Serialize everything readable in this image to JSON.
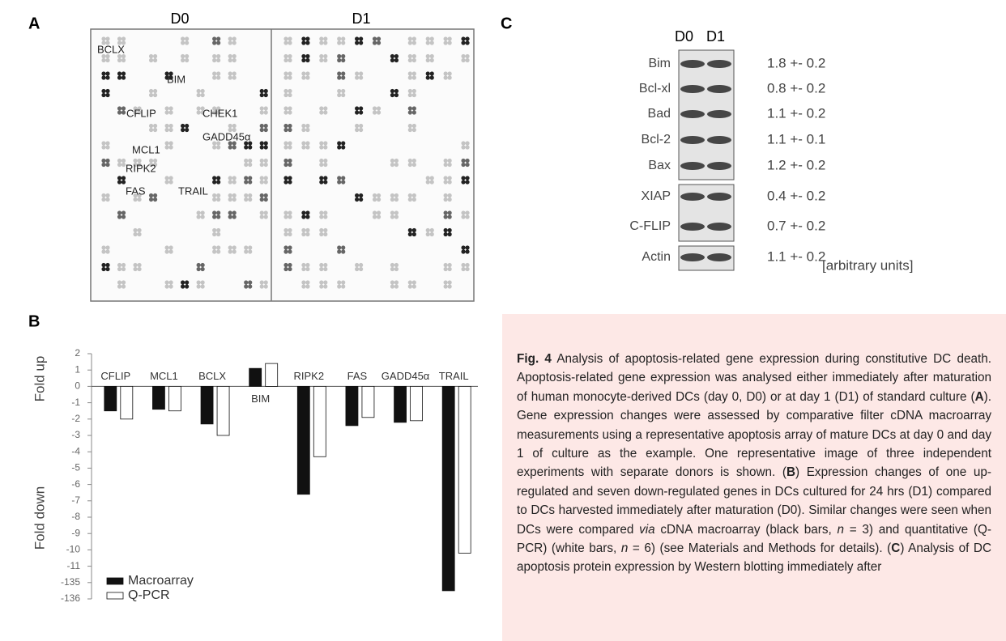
{
  "panel_a": {
    "letter": "A",
    "days": [
      "D0",
      "D1"
    ],
    "genes": [
      "BCLX",
      "BIM",
      "CFLIP",
      "CHEK1",
      "GADD45α",
      "MCL1",
      "RIPK2",
      "FAS",
      "TRAIL"
    ]
  },
  "chart_data": {
    "type": "bar",
    "letter": "B",
    "axis_labels": [
      "Fold up",
      "Fold down"
    ],
    "categories": [
      "CFLIP",
      "MCL1",
      "BCLX",
      "BIM",
      "RIPK2",
      "FAS",
      "GADD45α",
      "TRAIL"
    ],
    "series": [
      {
        "name": "Macroarray",
        "color": "#111111",
        "values": [
          -1.5,
          -1.4,
          -2.3,
          1.1,
          -6.6,
          -2.4,
          -2.2,
          -135.5
        ]
      },
      {
        "name": "Q-PCR",
        "color": "#ffffff",
        "values": [
          -2.0,
          -1.5,
          -3.0,
          1.4,
          -4.3,
          -1.9,
          -2.1,
          -10.2
        ]
      }
    ],
    "ylim": [
      -136,
      2
    ],
    "yticks": [
      2,
      1,
      0,
      -1,
      -2,
      -3,
      -4,
      -5,
      -6,
      -7,
      -8,
      -9,
      -10,
      -11,
      -135,
      -136
    ],
    "axis_break": [
      -11,
      -135
    ],
    "legend": "bottom-left"
  },
  "panel_c": {
    "letter": "C",
    "lanes": [
      "D0",
      "D1"
    ],
    "rows": [
      {
        "protein": "Bim",
        "ratio": "1.8 +- 0.2"
      },
      {
        "protein": "Bcl-xl",
        "ratio": "0.8 +- 0.2"
      },
      {
        "protein": "Bad",
        "ratio": "1.1 +- 0.2"
      },
      {
        "protein": "Bcl-2",
        "ratio": "1.1 +- 0.1"
      },
      {
        "protein": "Bax",
        "ratio": "1.2 +- 0.2"
      },
      {
        "protein": "XIAP",
        "ratio": "0.4 +- 0.2"
      },
      {
        "protein": "C-FLIP",
        "ratio": "0.7 +- 0.2"
      },
      {
        "protein": "Actin",
        "ratio": "1.1 +- 0.2"
      }
    ],
    "units": "[arbitrary units]"
  },
  "caption": {
    "parts": [
      {
        "text": "Fig. 4",
        "style": "bold"
      },
      {
        "text": " Analysis of apoptosis-related gene expression during constitutive DC death. Apoptosis-related gene expression was analysed either immediately after maturation of human monocyte-derived DCs (day 0, D0) or at day 1 (D1) of standard culture (",
        "style": "normal"
      },
      {
        "text": "A",
        "style": "bold"
      },
      {
        "text": "). Gene expression changes were assessed by comparative filter cDNA macroarray measurements using a representative apoptosis array of mature DCs at day 0 and day 1 of culture as the example. One representative image of three independent experiments with separate donors is shown. (",
        "style": "normal"
      },
      {
        "text": "B",
        "style": "bold"
      },
      {
        "text": ") Expression changes of one up-regulated and seven down-regulated genes in DCs cultured for 24 hrs (D1) compared to DCs harvested immediately after maturation (D0). Similar changes were seen when DCs were compared ",
        "style": "normal"
      },
      {
        "text": "via",
        "style": "italic"
      },
      {
        "text": " cDNA macroarray (black bars, ",
        "style": "normal"
      },
      {
        "text": "n",
        "style": "italic"
      },
      {
        "text": " = 3) and quantitative (Q-PCR) (white bars, ",
        "style": "normal"
      },
      {
        "text": "n",
        "style": "italic"
      },
      {
        "text": " = 6) (see Materials and Methods for details). (",
        "style": "normal"
      },
      {
        "text": "C",
        "style": "bold"
      },
      {
        "text": ") Analysis of DC apoptosis protein expression by Western blotting immediately after",
        "style": "normal"
      }
    ]
  }
}
